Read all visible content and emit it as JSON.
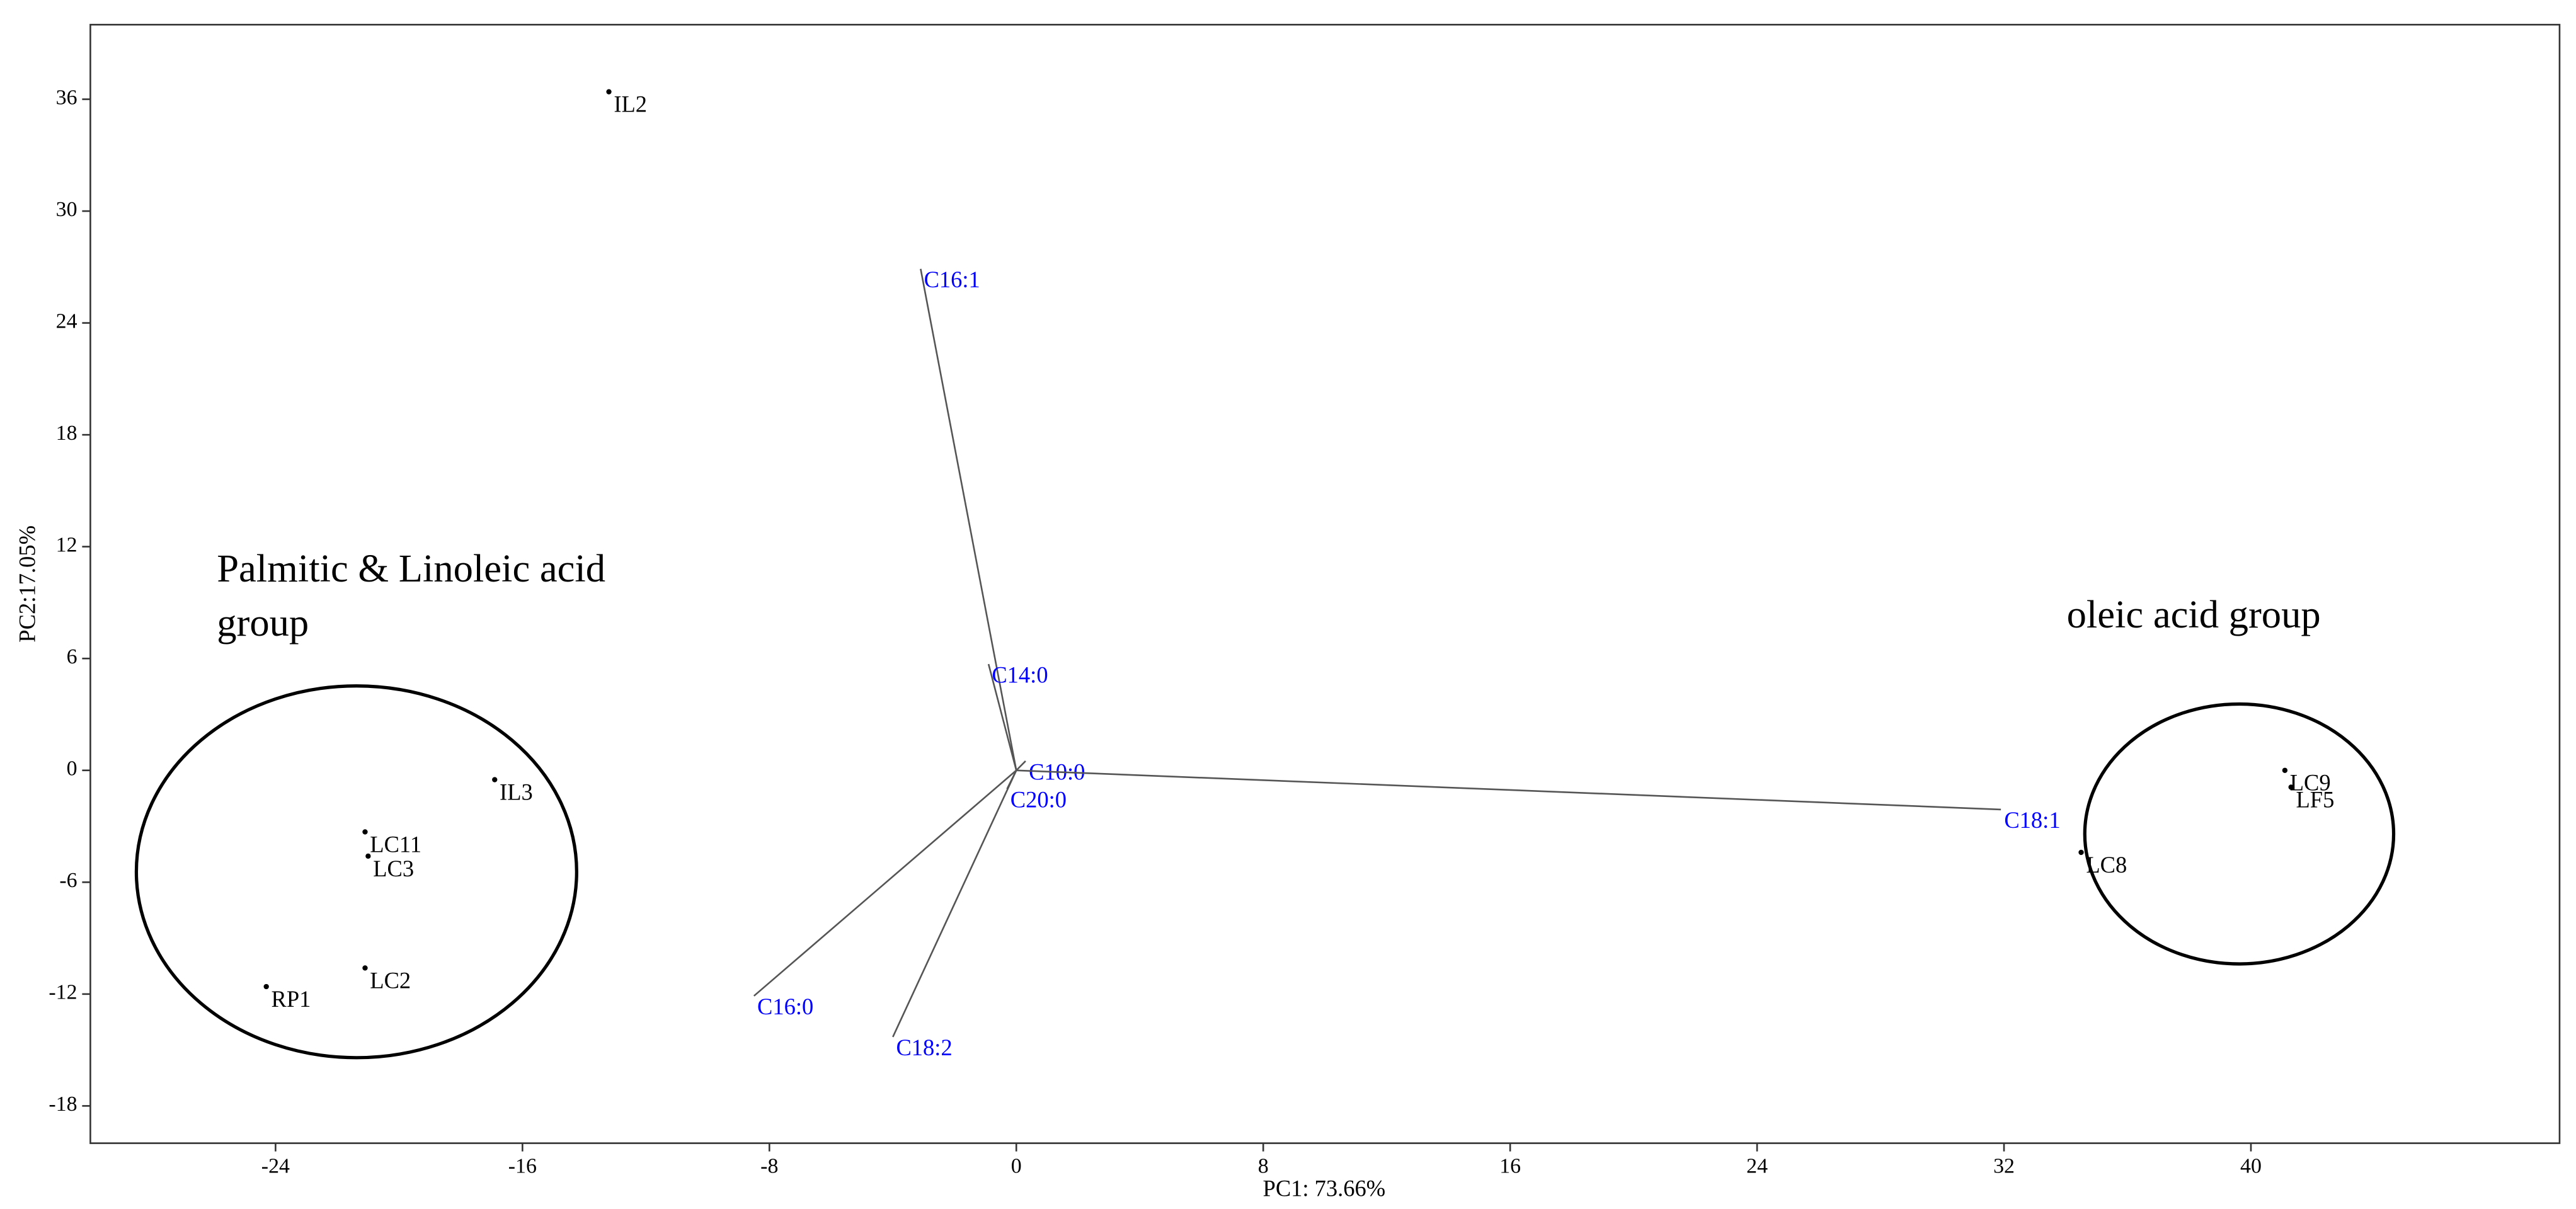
{
  "chart_data": {
    "type": "biplot",
    "x_label": "PC1: 73.66%",
    "y_label": "PC2:17.05%",
    "xlim": [
      -30,
      50
    ],
    "ylim": [
      -20,
      40
    ],
    "xticks": [
      -24,
      -16,
      -8,
      0,
      8,
      16,
      24,
      32,
      40
    ],
    "yticks": [
      -18,
      -12,
      -6,
      0,
      6,
      12,
      18,
      24,
      30,
      36
    ],
    "grid": false,
    "scores": {
      "color": "#000000",
      "names": [
        "IL2",
        "IL3",
        "LC11",
        "LC3",
        "LC2",
        "RP1",
        "LC9",
        "LF5",
        "LC8"
      ],
      "x": [
        -13.2,
        -16.9,
        -21.1,
        -21.0,
        -21.1,
        -24.3,
        41.1,
        41.3,
        34.5
      ],
      "y": [
        36.4,
        -0.5,
        -3.3,
        -4.6,
        -10.6,
        -11.6,
        0,
        -0.9,
        -4.4
      ]
    },
    "loadings": {
      "color": "#0000ff",
      "line_color": "#555555",
      "names": [
        "C16:1",
        "C14:0",
        "C10:0",
        "C20:0",
        "C18:1",
        "C16:0",
        "C18:2"
      ],
      "x": [
        -3.1,
        -0.9,
        0.3,
        -0.3,
        31.9,
        -8.5,
        -4.0
      ],
      "y": [
        26.9,
        5.7,
        0.5,
        -1.0,
        -2.1,
        -12.1,
        -14.3
      ]
    },
    "annotations": [
      [
        "Palmitic & Linoleic acid",
        "group"
      ],
      [
        "oleic acid group"
      ]
    ]
  }
}
